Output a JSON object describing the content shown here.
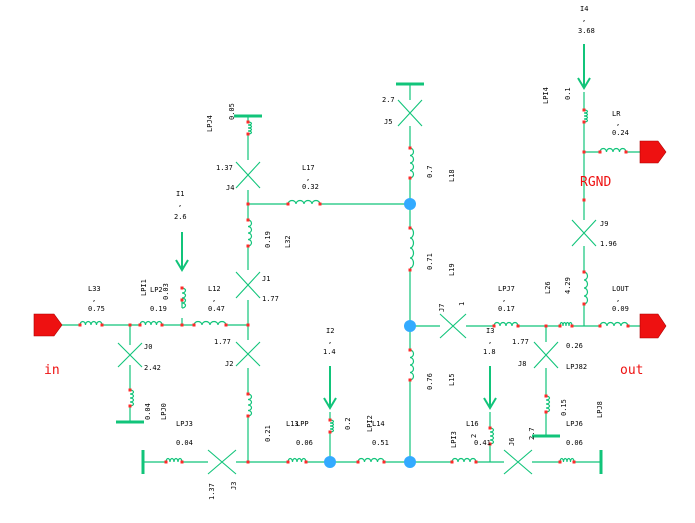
{
  "ports": {
    "in": "in",
    "out": "out",
    "rgnd": "RGND"
  },
  "components": [
    {
      "id": "L33",
      "value": "0.75"
    },
    {
      "id": "LPI1",
      "value": "0.03"
    },
    {
      "id": "LP2",
      "value": "0.19"
    },
    {
      "id": "L12",
      "value": "0.47"
    },
    {
      "id": "J0",
      "value": "2.42"
    },
    {
      "id": "LPJ0",
      "value": "0.04"
    },
    {
      "id": "LPJ3",
      "value": "0.04"
    },
    {
      "id": "J1",
      "value": "1.77"
    },
    {
      "id": "J2",
      "value": "1.77"
    },
    {
      "id": "L32",
      "value": "0.19"
    },
    {
      "id": "J4",
      "value": "1.37"
    },
    {
      "id": "LPJ4",
      "value": "0.05"
    },
    {
      "id": "L17",
      "value": "0.32"
    },
    {
      "id": "J5",
      "value": "2.7"
    },
    {
      "id": "L18",
      "value": "0.7"
    },
    {
      "id": "L19",
      "value": "0.71"
    },
    {
      "id": "L15",
      "value": "0.76"
    },
    {
      "id": "L13",
      "value": "0.21"
    },
    {
      "id": "LPP",
      "value": "0.06"
    },
    {
      "id": "LPI2",
      "value": "0.2"
    },
    {
      "id": "L14",
      "value": "0.51"
    },
    {
      "id": "J3",
      "value": "1.37"
    },
    {
      "id": "LPI3",
      "value": "0.41"
    },
    {
      "id": "L16",
      "value": "2"
    },
    {
      "id": "J6",
      "value": "2.7"
    },
    {
      "id": "J7",
      "value": "1"
    },
    {
      "id": "LPJ7",
      "value": "0.17"
    },
    {
      "id": "J8",
      "value": "1.77"
    },
    {
      "id": "LPJ82",
      "value": "0.26"
    },
    {
      "id": "LPJ8",
      "value": "0.15"
    },
    {
      "id": "LPJ6",
      "value": "0.06"
    },
    {
      "id": "L26",
      "value": "4.29"
    },
    {
      "id": "LOUT",
      "value": "0.09"
    },
    {
      "id": "J9",
      "value": "1.96"
    },
    {
      "id": "LPI4",
      "value": "0.1"
    },
    {
      "id": "LR",
      "value": "0.24"
    }
  ],
  "sources": [
    {
      "id": "I1",
      "value": "2.6"
    },
    {
      "id": "I2",
      "value": "1.4"
    },
    {
      "id": "I3",
      "value": "1.8"
    },
    {
      "id": "I4",
      "value": "3.68"
    }
  ],
  "colors": {
    "wire": "#11c47a",
    "pin_dot": "#ff2a2a",
    "node": "#33aaff",
    "port": "#ee1111"
  }
}
